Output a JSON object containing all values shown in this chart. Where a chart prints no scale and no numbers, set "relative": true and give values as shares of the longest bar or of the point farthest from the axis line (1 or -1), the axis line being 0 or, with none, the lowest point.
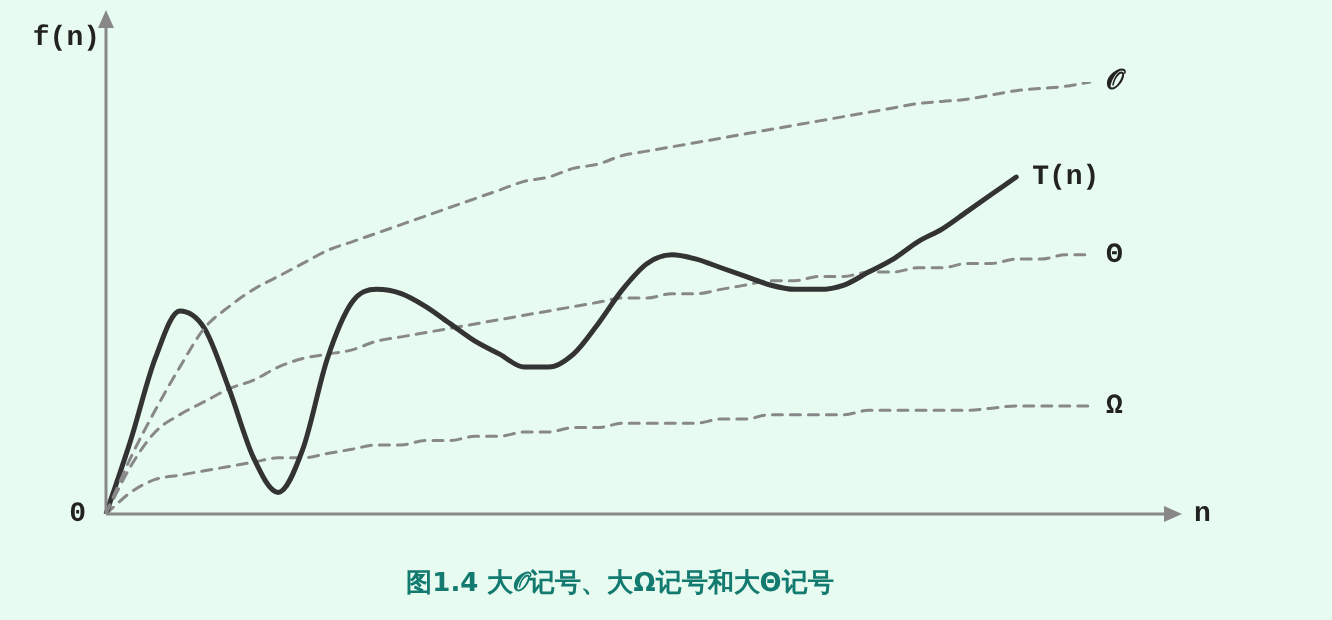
{
  "chart_data": {
    "type": "line",
    "title": "图1.4 大𝒪记号、大Ω记号和大Θ记号",
    "xlabel": "n",
    "ylabel": "f(n)",
    "relative": true,
    "grid": false,
    "legend": false,
    "marker": "none",
    "annotations": [
      "0"
    ],
    "categories": [
      null,
      null,
      null,
      null,
      null,
      null,
      null,
      null,
      null,
      null,
      null,
      null,
      null,
      null,
      null,
      null,
      null,
      null,
      null,
      null,
      null,
      null,
      null,
      null,
      null,
      null,
      null,
      null,
      null,
      null,
      null,
      null,
      null,
      null,
      null,
      null,
      null,
      null,
      null,
      null,
      null
    ],
    "series": [
      {
        "name": "𝒪",
        "color": "#888888",
        "line_style": "dashed",
        "values": [
          0,
          0.13,
          0.24,
          0.34,
          0.43,
          0.48,
          0.52,
          0.55,
          0.58,
          0.61,
          0.63,
          0.65,
          0.67,
          0.69,
          0.71,
          0.73,
          0.75,
          0.77,
          0.78,
          0.8,
          0.81,
          0.83,
          0.84,
          0.85,
          0.86,
          0.87,
          0.88,
          0.89,
          0.9,
          0.91,
          0.92,
          0.93,
          0.94,
          0.95,
          0.955,
          0.96,
          0.97,
          0.98,
          0.985,
          0.99,
          1.0
        ]
      },
      {
        "name": "T(n)",
        "color": "#333333",
        "line_style": "solid",
        "values": [
          0,
          0.17,
          0.36,
          0.47,
          0.43,
          0.29,
          0.13,
          0.05,
          0.15,
          0.36,
          0.49,
          0.52,
          0.51,
          0.48,
          0.44,
          0.4,
          0.37,
          0.34,
          0.34,
          0.37,
          0.44,
          0.52,
          0.58,
          0.6,
          0.59,
          0.57,
          0.55,
          0.53,
          0.52,
          0.52,
          0.53,
          0.56,
          0.59,
          0.63,
          0.66,
          0.7,
          0.74,
          0.78,
          null,
          null,
          null
        ]
      },
      {
        "name": "Θ",
        "color": "#888888",
        "line_style": "dashed",
        "values": [
          0,
          0.11,
          0.19,
          0.23,
          0.26,
          0.29,
          0.31,
          0.34,
          0.36,
          0.37,
          0.38,
          0.4,
          0.41,
          0.42,
          0.43,
          0.44,
          0.45,
          0.46,
          0.47,
          0.48,
          0.49,
          0.5,
          0.5,
          0.51,
          0.51,
          0.52,
          0.53,
          0.54,
          0.54,
          0.55,
          0.55,
          0.56,
          0.56,
          0.57,
          0.57,
          0.58,
          0.58,
          0.59,
          0.59,
          0.6,
          0.6
        ]
      },
      {
        "name": "Ω",
        "color": "#888888",
        "line_style": "dashed",
        "values": [
          0,
          0.05,
          0.08,
          0.09,
          0.1,
          0.11,
          0.12,
          0.13,
          0.13,
          0.14,
          0.15,
          0.16,
          0.16,
          0.17,
          0.17,
          0.18,
          0.18,
          0.19,
          0.19,
          0.2,
          0.2,
          0.21,
          0.21,
          0.21,
          0.21,
          0.22,
          0.22,
          0.23,
          0.23,
          0.23,
          0.23,
          0.24,
          0.24,
          0.24,
          0.24,
          0.24,
          0.245,
          0.25,
          0.25,
          0.25,
          0.25
        ]
      }
    ]
  }
}
